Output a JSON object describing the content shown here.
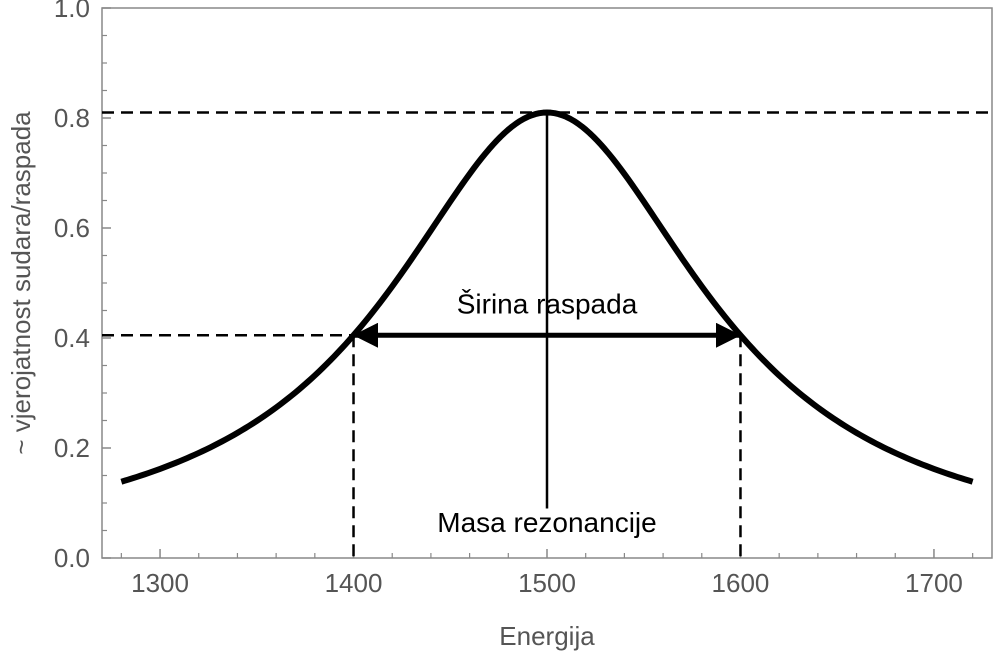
{
  "chart_data": {
    "type": "line",
    "xlabel": "Energija",
    "ylabel": "~ vjerojatnost sudara/raspada",
    "xlim": [
      1270,
      1730
    ],
    "ylim": [
      0,
      1.0
    ],
    "x_ticks": [
      1300,
      1400,
      1500,
      1600,
      1700
    ],
    "x_tick_labels": [
      "1300",
      "1400",
      "1500",
      "1600",
      "1700"
    ],
    "y_ticks": [
      0.0,
      0.2,
      0.4,
      0.6,
      0.8,
      1.0
    ],
    "y_tick_labels": [
      "0.0",
      "0.2",
      "0.4",
      "0.6",
      "0.8",
      "1.0"
    ],
    "grid": false,
    "series": [
      {
        "curve": "breit-wigner",
        "peak_x": 1500,
        "peak_y": 0.81,
        "half_width": 100,
        "x_range": [
          1280,
          1720
        ]
      }
    ],
    "reference_lines": {
      "peak_level": 0.81,
      "half_level": 0.405,
      "left_energy": 1400,
      "right_energy": 1600,
      "center_energy": 1500
    },
    "annotations": {
      "width_label": "Širina raspada",
      "mass_label": "Masa rezonancije"
    },
    "colors": {
      "curve": "#000000",
      "axis": "#777777",
      "text": "#555555"
    }
  }
}
